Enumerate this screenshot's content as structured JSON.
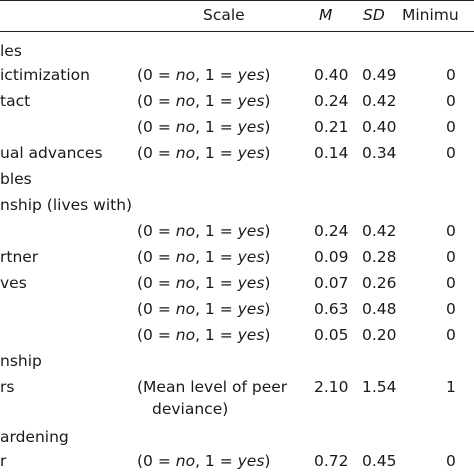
{
  "header": {
    "scale": "Scale",
    "m": "M",
    "sd": "SD",
    "min": "Minimu"
  },
  "rows": [
    {
      "label": "les",
      "scale": "",
      "m": "",
      "sd": "",
      "min": ""
    },
    {
      "label": "ictimization",
      "scale": "(0 = no, 1 = yes)",
      "m": "0.40",
      "sd": "0.49",
      "min": "0"
    },
    {
      "label": "tact",
      "scale": "(0 = no, 1 = yes)",
      "m": "0.24",
      "sd": "0.42",
      "min": "0"
    },
    {
      "label": "",
      "scale": "(0 = no, 1 = yes)",
      "m": "0.21",
      "sd": "0.40",
      "min": "0"
    },
    {
      "label": "ual advances",
      "scale": "(0 = no, 1 = yes)",
      "m": "0.14",
      "sd": "0.34",
      "min": "0"
    },
    {
      "label": "bles",
      "scale": "",
      "m": "",
      "sd": "",
      "min": ""
    },
    {
      "label": "nship (lives with)",
      "scale": "",
      "m": "",
      "sd": "",
      "min": ""
    },
    {
      "label": "",
      "scale": "(0 = no, 1 = yes)",
      "m": "0.24",
      "sd": "0.42",
      "min": "0"
    },
    {
      "label": "rtner",
      "scale": "(0 = no, 1 = yes)",
      "m": "0.09",
      "sd": "0.28",
      "min": "0"
    },
    {
      "label": "ves",
      "scale": "(0 = no, 1 = yes)",
      "m": "0.07",
      "sd": "0.26",
      "min": "0"
    },
    {
      "label": "",
      "scale": "(0 = no, 1 = yes)",
      "m": "0.63",
      "sd": "0.48",
      "min": "0"
    },
    {
      "label": "",
      "scale": "(0 = no, 1 = yes)",
      "m": "0.05",
      "sd": "0.20",
      "min": "0"
    },
    {
      "label": "nship",
      "scale": "",
      "m": "",
      "sd": "",
      "min": ""
    },
    {
      "label": "rs",
      "scale": "(Mean level of peer",
      "m": "2.10",
      "sd": "1.54",
      "min": "1"
    },
    {
      "label": "",
      "scale": "deviance)",
      "m": "",
      "sd": "",
      "min": ""
    },
    {
      "label": "ardening",
      "scale": "",
      "m": "",
      "sd": "",
      "min": ""
    },
    {
      "label": "r",
      "scale": "(0 = no, 1 = yes)",
      "m": "0.72",
      "sd": "0.45",
      "min": "0"
    }
  ]
}
